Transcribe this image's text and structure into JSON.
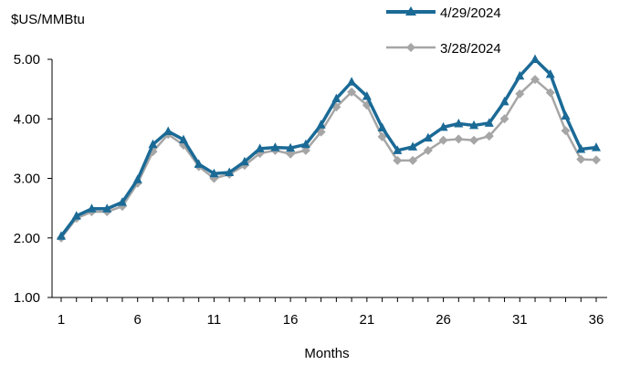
{
  "chart_data": {
    "type": "line",
    "title": "",
    "ylabel": "$US/MMBtu",
    "xlabel": "Months",
    "ylim": [
      1.0,
      5.0
    ],
    "xlim": [
      1,
      36
    ],
    "yticks": [
      "1.00",
      "2.00",
      "3.00",
      "4.00",
      "5.00"
    ],
    "xticks": [
      "1",
      "6",
      "11",
      "16",
      "21",
      "26",
      "31",
      "36"
    ],
    "grid": false,
    "legend_position": "top-right",
    "x": [
      1,
      2,
      3,
      4,
      5,
      6,
      7,
      8,
      9,
      10,
      11,
      12,
      13,
      14,
      15,
      16,
      17,
      18,
      19,
      20,
      21,
      22,
      23,
      24,
      25,
      26,
      27,
      28,
      29,
      30,
      31,
      32,
      33,
      34,
      35,
      36
    ],
    "series": [
      {
        "name": "4/29/2024",
        "color": "#1b6a96",
        "marker": "triangle",
        "values": [
          2.03,
          2.37,
          2.49,
          2.49,
          2.6,
          2.98,
          3.57,
          3.79,
          3.65,
          3.24,
          3.08,
          3.1,
          3.28,
          3.5,
          3.52,
          3.51,
          3.57,
          3.9,
          4.34,
          4.62,
          4.38,
          3.85,
          3.47,
          3.53,
          3.68,
          3.86,
          3.92,
          3.89,
          3.93,
          4.29,
          4.72,
          5.0,
          4.75,
          4.05,
          3.49,
          3.52
        ]
      },
      {
        "name": "3/28/2024",
        "color": "#a6a6a6",
        "marker": "diamond",
        "values": [
          2.0,
          2.33,
          2.44,
          2.44,
          2.53,
          2.92,
          3.45,
          3.74,
          3.56,
          3.2,
          3.0,
          3.07,
          3.22,
          3.42,
          3.47,
          3.41,
          3.47,
          3.78,
          4.2,
          4.45,
          4.23,
          3.7,
          3.3,
          3.3,
          3.47,
          3.64,
          3.66,
          3.64,
          3.71,
          4.0,
          4.42,
          4.66,
          4.44,
          3.8,
          3.32,
          3.31
        ]
      }
    ]
  }
}
